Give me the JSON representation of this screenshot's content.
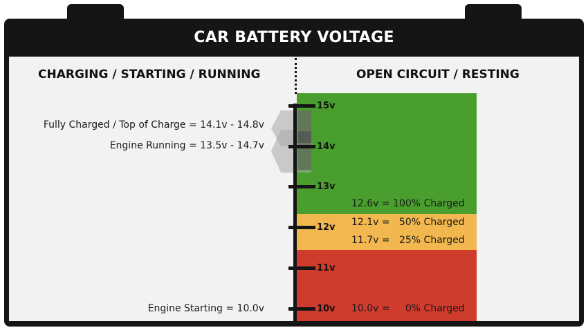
{
  "title": "CAR BATTERY VOLTAGE",
  "left_heading": "CHARGING / STARTING / RUNNING",
  "right_heading": "OPEN CIRCUIT / RESTING",
  "scale": {
    "ticks": [
      {
        "value": 15,
        "label": "15v"
      },
      {
        "value": 14,
        "label": "14v"
      },
      {
        "value": 13,
        "label": "13v"
      },
      {
        "value": 12,
        "label": "12v"
      },
      {
        "value": 11,
        "label": "11v"
      },
      {
        "value": 10,
        "label": "10v"
      }
    ]
  },
  "zones": [
    {
      "name": "green",
      "color": "#4a9e2d"
    },
    {
      "name": "yellow",
      "color": "#f2b84f"
    },
    {
      "name": "red",
      "color": "#cf3b2c"
    }
  ],
  "resting_labels": [
    {
      "voltage": "12.6v = 100% Charged"
    },
    {
      "voltage": "12.1v =   50% Charged"
    },
    {
      "voltage": "11.7v =   25% Charged"
    },
    {
      "voltage": "10.0v =     0% Charged"
    }
  ],
  "charging_labels": [
    {
      "text": "Fully Charged / Top of Charge = 14.1v - 14.8v",
      "range": [
        14.1,
        14.8
      ]
    },
    {
      "text": "Engine Running = 13.5v - 14.7v",
      "range": [
        13.5,
        14.7
      ]
    },
    {
      "text": "Engine Starting = 10.0v",
      "value": 10.0
    }
  ]
}
